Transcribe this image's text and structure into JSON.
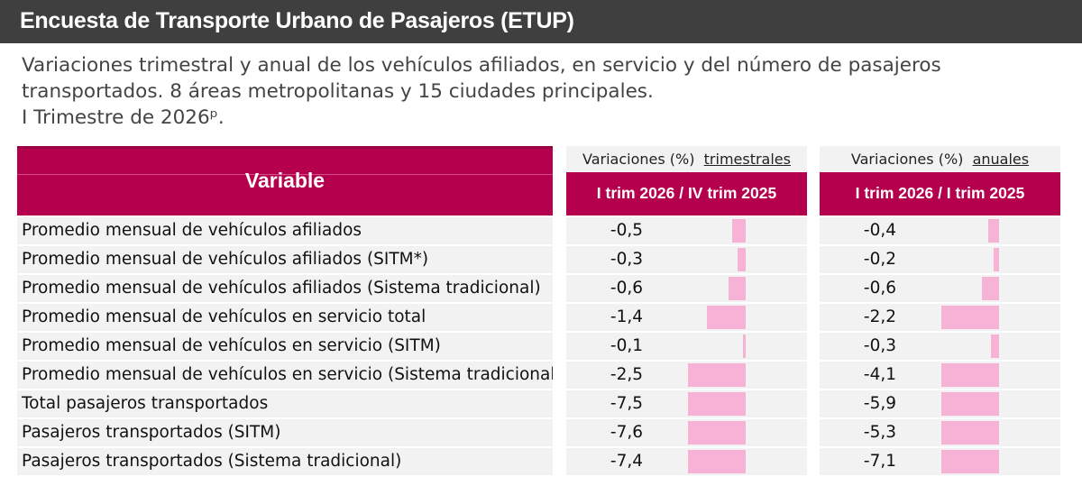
{
  "header": {
    "title": "Encuesta de Transporte Urbano de Pasajeros (ETUP)"
  },
  "subtitle": {
    "line1": "Variaciones trimestral y anual de los vehículos afiliados, en servicio y del número de pasajeros",
    "line2": "transportados. 8 áreas metropolitanas y 15 ciudades principales.",
    "line3": "I Trimestre de 2026ᵖ."
  },
  "table": {
    "variable_header": "Variable",
    "col1": {
      "top_prefix": "Variaciones (%)",
      "top_emph": "trimestrales",
      "label": "I trim 2026 / IV trim 2025"
    },
    "col2": {
      "top_prefix": "Variaciones (%)",
      "top_emph": "anuales",
      "label": "I trim 2026 / I trim 2025"
    }
  },
  "chart_data": {
    "type": "table",
    "title": "Encuesta de Transporte Urbano de Pasajeros (ETUP)",
    "columns": [
      "Variable",
      "I trim 2026 / IV trim 2025",
      "I trim 2026 / I trim 2025"
    ],
    "rows": [
      {
        "label": "Promedio mensual de vehículos afiliados",
        "quarterly": "-0,5",
        "annual": "-0,4",
        "q": -0.5,
        "a": -0.4
      },
      {
        "label": "Promedio mensual de vehículos afiliados (SITM*)",
        "quarterly": "-0,3",
        "annual": "-0,2",
        "q": -0.3,
        "a": -0.2
      },
      {
        "label": "Promedio mensual de vehículos afiliados (Sistema tradicional)",
        "quarterly": "-0,6",
        "annual": "-0,6",
        "q": -0.6,
        "a": -0.6
      },
      {
        "label": "Promedio mensual de vehículos en servicio total",
        "quarterly": "-1,4",
        "annual": "-2,2",
        "q": -1.4,
        "a": -2.2
      },
      {
        "label": "Promedio mensual de vehículos en servicio (SITM)",
        "quarterly": "-0,1",
        "annual": "-0,3",
        "q": -0.1,
        "a": -0.3
      },
      {
        "label": "Promedio mensual de vehículos en servicio (Sistema tradicional)",
        "quarterly": "-2,5",
        "annual": "-4,1",
        "q": -2.5,
        "a": -4.1
      },
      {
        "label": "Total pasajeros transportados",
        "quarterly": "-7,5",
        "annual": "-5,9",
        "q": -7.5,
        "a": -5.9
      },
      {
        "label": "Pasajeros transportados (SITM)",
        "quarterly": "-7,6",
        "annual": "-5,3",
        "q": -7.6,
        "a": -5.3
      },
      {
        "label": "Pasajeros transportados (Sistema tradicional)",
        "quarterly": "-7,4",
        "annual": "-7,1",
        "q": -7.4,
        "a": -7.1
      }
    ],
    "bar_color": "#f7b3d6",
    "header_color": "#b5004e"
  }
}
